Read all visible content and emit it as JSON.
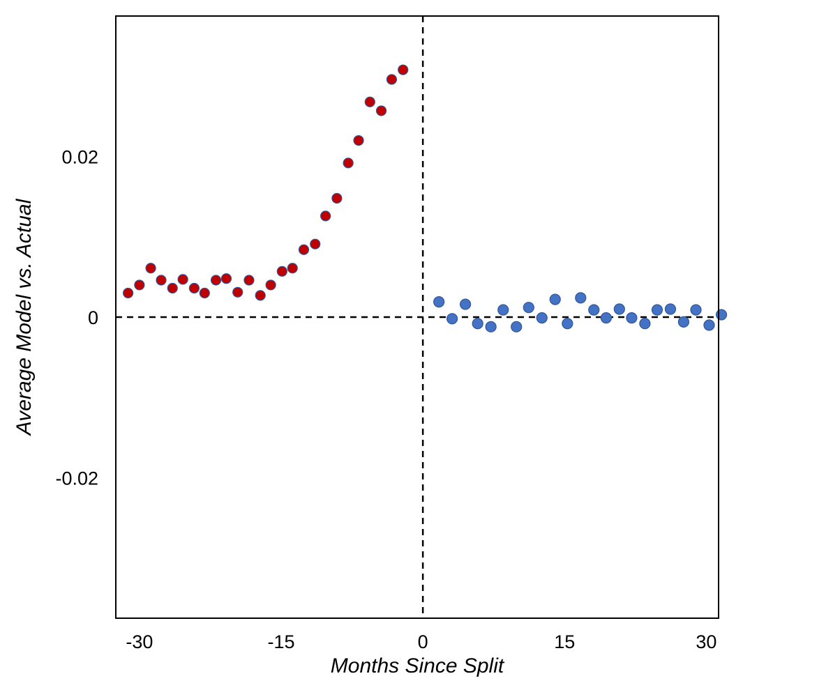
{
  "chart_data": {
    "type": "scatter",
    "title": "",
    "xlabel": "Months Since Split",
    "ylabel": "Average Model vs. Actual",
    "xlim": [
      -32.5,
      31.3
    ],
    "ylim": [
      -0.0375,
      0.0375
    ],
    "x_ticks": [
      {
        "value": -30,
        "label": "-30"
      },
      {
        "value": -15,
        "label": "-15"
      },
      {
        "value": 0,
        "label": "0"
      },
      {
        "value": 15,
        "label": "15"
      },
      {
        "value": 30,
        "label": "30"
      }
    ],
    "y_ticks": [
      {
        "value": 0.02,
        "label": "0.02"
      },
      {
        "value": 0,
        "label": "0"
      },
      {
        "value": -0.02,
        "label": "-0.02"
      }
    ],
    "reference_lines": {
      "x": 0,
      "y": 0,
      "style": "dashed"
    },
    "grid": false,
    "colors": {
      "pre": "#c00000",
      "pre_edge": "#2f5597",
      "post": "#4472c4",
      "post_edge": "#2f5597",
      "axes": "#000000"
    },
    "series": [
      {
        "color": "#c00000",
        "points": [
          [
            -31.2,
            0.003
          ],
          [
            -30.0,
            0.004
          ],
          [
            -28.8,
            0.0061
          ],
          [
            -27.7,
            0.0046
          ],
          [
            -26.5,
            0.0036
          ],
          [
            -25.4,
            0.0047
          ],
          [
            -24.2,
            0.0036
          ],
          [
            -23.1,
            0.003
          ],
          [
            -21.9,
            0.0046
          ],
          [
            -20.8,
            0.0048
          ],
          [
            -19.6,
            0.0031
          ],
          [
            -18.4,
            0.0046
          ],
          [
            -17.2,
            0.0027
          ],
          [
            -16.1,
            0.004
          ],
          [
            -14.9,
            0.0057
          ],
          [
            -13.8,
            0.0061
          ],
          [
            -12.6,
            0.0084
          ],
          [
            -11.4,
            0.0091
          ],
          [
            -10.3,
            0.0126
          ],
          [
            -9.1,
            0.0148
          ],
          [
            -7.9,
            0.0192
          ],
          [
            -6.8,
            0.022
          ],
          [
            -5.6,
            0.0268
          ],
          [
            -4.4,
            0.0257
          ],
          [
            -3.3,
            0.0296
          ],
          [
            -2.1,
            0.0308
          ]
        ]
      },
      {
        "color": "#4472c4",
        "points": [
          [
            1.7,
            0.0019
          ],
          [
            3.1,
            -0.0002
          ],
          [
            4.5,
            0.0016
          ],
          [
            5.8,
            -0.0008
          ],
          [
            7.2,
            -0.0012
          ],
          [
            8.5,
            0.0009
          ],
          [
            9.9,
            -0.0012
          ],
          [
            11.2,
            0.0012
          ],
          [
            12.6,
            -0.0001
          ],
          [
            14.0,
            0.0022
          ],
          [
            15.3,
            -0.0008
          ],
          [
            16.7,
            0.0024
          ],
          [
            18.1,
            0.0009
          ],
          [
            19.4,
            -0.0001
          ],
          [
            20.8,
            0.001
          ],
          [
            22.1,
            -0.0001
          ],
          [
            23.5,
            -0.0008
          ],
          [
            24.8,
            0.0009
          ],
          [
            26.2,
            0.001
          ],
          [
            27.6,
            -0.0006
          ],
          [
            28.9,
            0.0009
          ],
          [
            30.3,
            -0.001
          ],
          [
            31.6,
            0.0003
          ]
        ]
      }
    ]
  }
}
